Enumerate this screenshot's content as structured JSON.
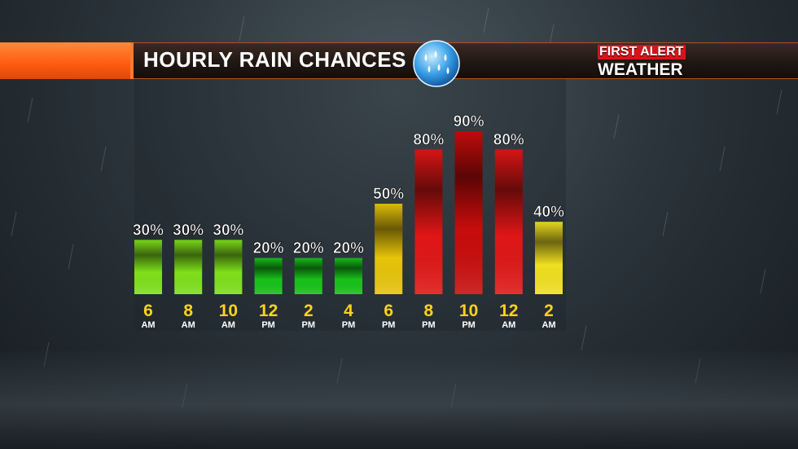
{
  "header": {
    "title": "HOURLY RAIN CHANCES",
    "brand_line1": "FIRST ALERT",
    "brand_line2": "WEATHER"
  },
  "icons": {
    "weather": "rain-drops-icon"
  },
  "colors": {
    "accent_orange": "#ff6a1a",
    "brand_red": "#d8141a",
    "label_yellow": "#ffd21a"
  },
  "chart_data": {
    "type": "bar",
    "title": "HOURLY RAIN CHANCES",
    "unit": "%",
    "ylim": [
      0,
      100
    ],
    "grid": false,
    "categories": [
      {
        "hour": "6",
        "period": "AM"
      },
      {
        "hour": "8",
        "period": "AM"
      },
      {
        "hour": "10",
        "period": "AM"
      },
      {
        "hour": "12",
        "period": "PM"
      },
      {
        "hour": "2",
        "period": "PM"
      },
      {
        "hour": "4",
        "period": "PM"
      },
      {
        "hour": "6",
        "period": "PM"
      },
      {
        "hour": "8",
        "period": "PM"
      },
      {
        "hour": "10",
        "period": "PM"
      },
      {
        "hour": "12",
        "period": "AM"
      },
      {
        "hour": "2",
        "period": "AM"
      }
    ],
    "values": [
      30,
      30,
      30,
      20,
      20,
      20,
      50,
      80,
      90,
      80,
      40
    ],
    "value_labels": [
      "30%",
      "30%",
      "30%",
      "20%",
      "20%",
      "20%",
      "50%",
      "80%",
      "90%",
      "80%",
      "40%"
    ],
    "bar_colors": [
      "#7fe01a",
      "#7fe01a",
      "#7fe01a",
      "#18c21a",
      "#18c21a",
      "#18c21a",
      "#e6c40a",
      "#e01616",
      "#c80c0c",
      "#e01616",
      "#f0e020"
    ]
  }
}
